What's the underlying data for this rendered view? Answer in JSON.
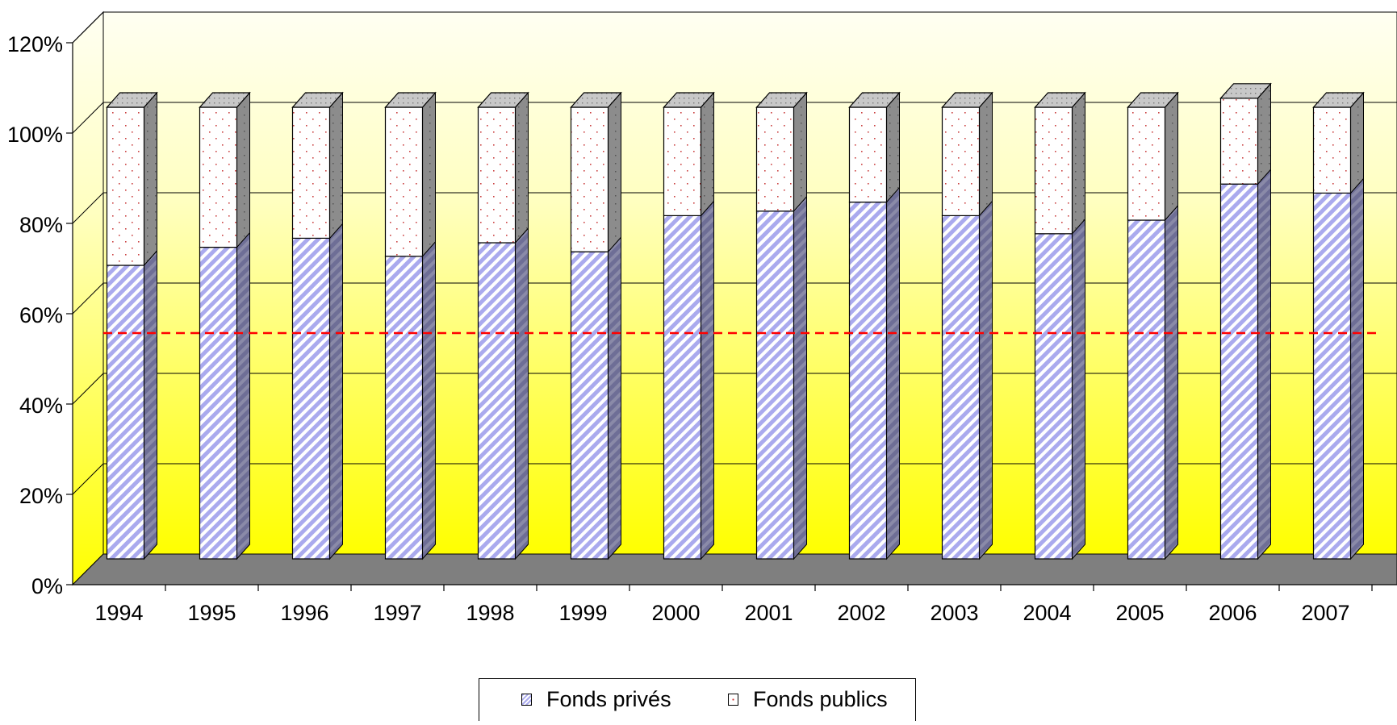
{
  "chart_data": {
    "type": "bar",
    "stacked": true,
    "three_d": true,
    "categories": [
      "1994",
      "1995",
      "1996",
      "1997",
      "1998",
      "1999",
      "2000",
      "2001",
      "2002",
      "2003",
      "2004",
      "2005",
      "2006",
      "2007"
    ],
    "series": [
      {
        "name": "Fonds privés",
        "values": [
          65,
          69,
          71,
          67,
          70,
          68,
          76,
          77,
          79,
          76,
          72,
          75,
          83,
          81
        ],
        "color": "#aaaaee"
      },
      {
        "name": "Fonds publics",
        "values": [
          35,
          31,
          29,
          33,
          30,
          32,
          24,
          23,
          21,
          24,
          28,
          25,
          19,
          19
        ],
        "color": "#ffffff"
      }
    ],
    "reference_line": {
      "value": 50,
      "color": "#ff0000",
      "style": "dashed"
    },
    "y_ticks": [
      "0%",
      "20%",
      "40%",
      "60%",
      "80%",
      "100%",
      "120%"
    ],
    "ylim": [
      0,
      120
    ],
    "grid": true,
    "legend_position": "bottom"
  }
}
